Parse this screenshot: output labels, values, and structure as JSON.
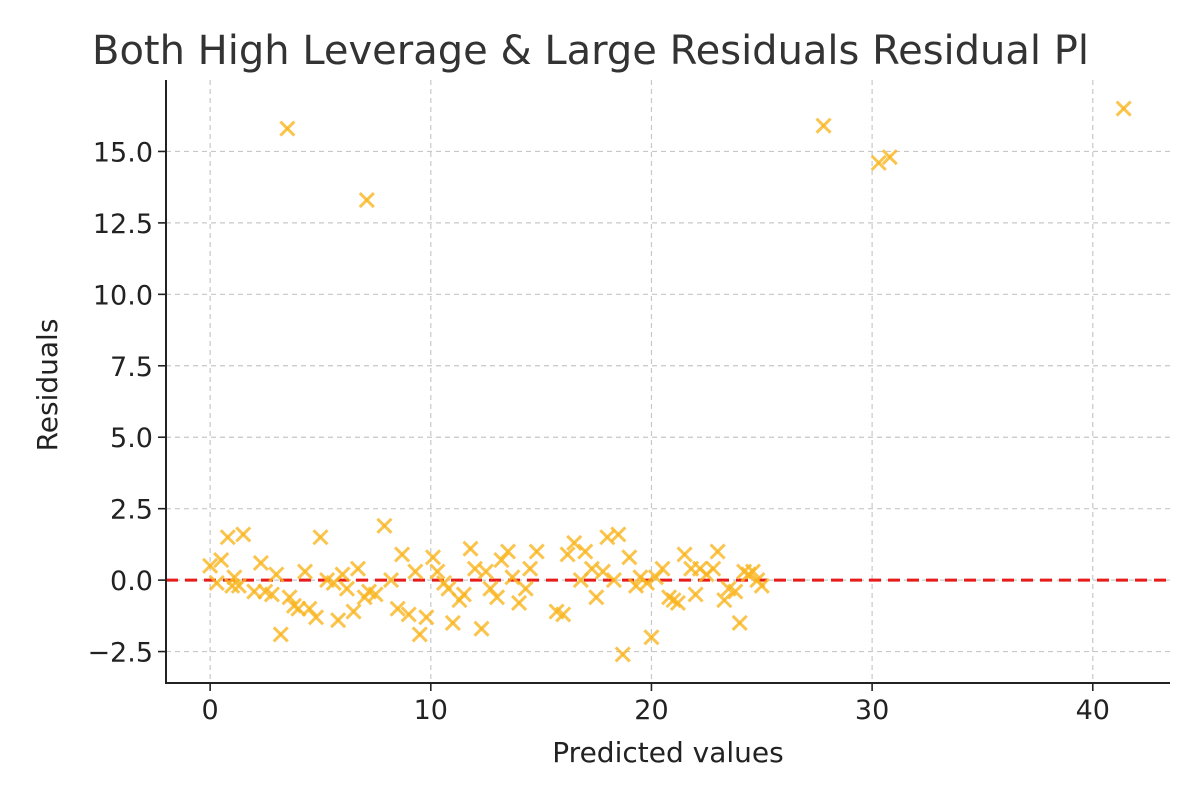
{
  "chart_data": {
    "type": "scatter",
    "title": "Both High Leverage & Large Residuals Residual Pl",
    "xlabel": "Predicted values",
    "ylabel": "Residuals",
    "xlim": [
      -2,
      43.5
    ],
    "ylim": [
      -3.6,
      17.5
    ],
    "x_ticks": [
      0,
      10,
      20,
      30,
      40
    ],
    "x_tick_labels": [
      "0",
      "10",
      "20",
      "30",
      "40"
    ],
    "y_ticks": [
      -2.5,
      0.0,
      2.5,
      5.0,
      7.5,
      10.0,
      12.5,
      15.0
    ],
    "y_tick_labels": [
      "−2.5",
      "0.0",
      "2.5",
      "5.0",
      "7.5",
      "10.0",
      "12.5",
      "15.0"
    ],
    "grid": true,
    "marker": "x",
    "colors": {
      "points": "#f9b520",
      "reference_line": "#e81b1b"
    },
    "reference_line": {
      "y": 0
    },
    "series": [
      {
        "x": [
          0.0,
          0.3,
          0.5,
          0.8,
          1.0,
          1.1,
          1.3,
          1.5,
          2.0,
          2.3,
          2.5,
          2.8,
          3.0,
          3.2,
          3.6,
          3.8,
          4.0,
          4.3,
          4.5,
          4.8,
          5.0,
          5.3,
          5.6,
          5.8,
          6.0,
          6.2,
          6.5,
          6.7,
          7.0,
          7.2,
          7.5,
          7.9,
          8.2,
          8.5,
          8.7,
          9.0,
          9.3,
          9.5,
          9.8,
          10.1,
          10.3,
          10.6,
          10.8,
          11.0,
          11.3,
          11.5,
          11.8,
          12.0,
          12.3,
          12.5,
          12.7,
          13.0,
          13.2,
          13.5,
          13.7,
          14.0,
          14.3,
          14.5,
          14.8,
          15.7,
          16.0,
          16.2,
          16.5,
          16.8,
          17.0,
          17.3,
          17.5,
          17.8,
          18.0,
          18.3,
          18.5,
          18.7,
          19.0,
          19.3,
          19.5,
          19.8,
          20.0,
          20.2,
          20.5,
          20.8,
          21.0,
          21.2,
          21.5,
          21.8,
          22.0,
          22.2,
          22.5,
          22.8,
          23.0,
          23.3,
          23.5,
          23.8,
          24.0,
          24.2,
          24.4,
          24.6,
          24.8,
          25.0,
          3.5,
          7.1,
          27.8,
          30.3,
          30.8,
          41.4
        ],
        "y": [
          0.5,
          -0.1,
          0.7,
          1.5,
          -0.2,
          0.1,
          -0.2,
          1.6,
          -0.4,
          0.6,
          -0.4,
          -0.5,
          0.2,
          -1.9,
          -0.6,
          -0.9,
          -1.0,
          0.3,
          -1.0,
          -1.3,
          1.5,
          0.0,
          -0.1,
          -1.4,
          0.2,
          -0.3,
          -1.1,
          0.4,
          -0.6,
          -0.4,
          -0.5,
          1.9,
          0.0,
          -1.0,
          0.9,
          -1.2,
          0.3,
          -1.9,
          -1.3,
          0.8,
          0.3,
          -0.1,
          -0.3,
          -1.5,
          -0.7,
          -0.5,
          1.1,
          0.4,
          -1.7,
          0.3,
          -0.3,
          -0.6,
          0.7,
          1.0,
          0.1,
          -0.8,
          -0.3,
          0.4,
          1.0,
          -1.1,
          -1.2,
          0.9,
          1.3,
          0.0,
          1.0,
          0.4,
          -0.6,
          0.3,
          1.5,
          0.0,
          1.6,
          -2.6,
          0.8,
          -0.2,
          0.1,
          -0.1,
          -2.0,
          0.1,
          0.4,
          -0.6,
          -0.7,
          -0.8,
          0.9,
          0.4,
          -0.5,
          0.4,
          0.2,
          0.4,
          1.0,
          -0.7,
          -0.3,
          -0.4,
          -1.5,
          0.3,
          0.2,
          0.3,
          0.0,
          -0.2,
          15.8,
          13.3,
          15.9,
          14.6,
          14.8,
          16.5
        ]
      }
    ]
  }
}
